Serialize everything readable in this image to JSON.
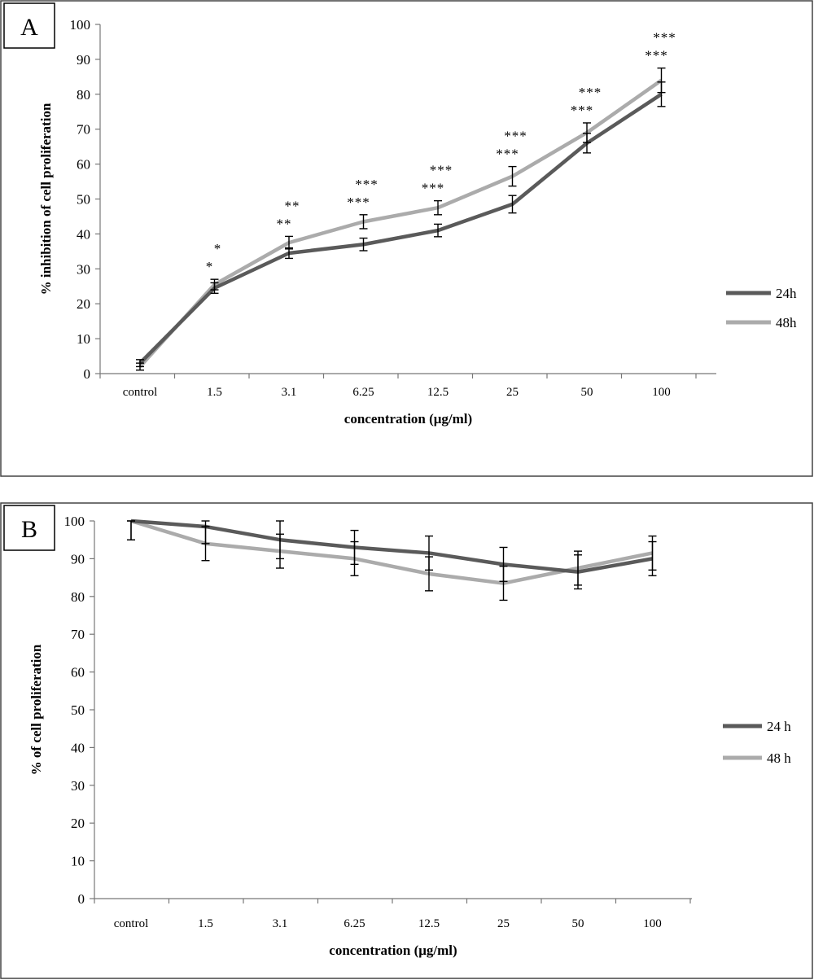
{
  "chart_data": [
    {
      "panel": "A",
      "type": "line",
      "xlabel": "concentration (μg/ml)",
      "ylabel": "% inhibition of cell proliferation",
      "categories": [
        "control",
        "1.5",
        "3.1",
        "6.25",
        "12.5",
        "25",
        "50",
        "100"
      ],
      "ylim": [
        0,
        100
      ],
      "yticks": [
        0,
        10,
        20,
        30,
        40,
        50,
        60,
        70,
        80,
        90,
        100
      ],
      "grid": false,
      "legend_position": "right",
      "series": [
        {
          "name": "24h",
          "color": "#5a5a5a",
          "values": [
            3,
            24.5,
            34.5,
            37,
            41,
            48.5,
            66,
            80
          ],
          "errors": [
            1,
            1.5,
            1.5,
            1.8,
            1.8,
            2.5,
            2.8,
            3.5
          ]
        },
        {
          "name": "48h",
          "color": "#ababab",
          "values": [
            2,
            25.5,
            37.5,
            43.5,
            47.5,
            56.5,
            69,
            84
          ],
          "errors": [
            1,
            1.5,
            1.8,
            2,
            2,
            2.8,
            2.8,
            3.5
          ]
        }
      ],
      "annotations": [
        {
          "category": "1.5",
          "upper": "*",
          "lower": "*"
        },
        {
          "category": "3.1",
          "upper": "**",
          "lower": "**"
        },
        {
          "category": "6.25",
          "upper": "***",
          "lower": "***"
        },
        {
          "category": "12.5",
          "upper": "***",
          "lower": "***"
        },
        {
          "category": "25",
          "upper": "***",
          "lower": "***"
        },
        {
          "category": "50",
          "upper": "***",
          "lower": "***"
        },
        {
          "category": "100",
          "upper": "***",
          "lower": "***"
        }
      ]
    },
    {
      "panel": "B",
      "type": "line",
      "xlabel": "concentration (μg/ml)",
      "ylabel": "% of cell proliferation",
      "categories": [
        "control",
        "1.5",
        "3.1",
        "6.25",
        "12.5",
        "25",
        "50",
        "100"
      ],
      "ylim": [
        0,
        100
      ],
      "yticks": [
        0,
        10,
        20,
        30,
        40,
        50,
        60,
        70,
        80,
        90,
        100
      ],
      "grid": false,
      "legend_position": "right",
      "series": [
        {
          "name": "24 h",
          "color": "#5a5a5a",
          "values": [
            100,
            98.5,
            95,
            93,
            91.5,
            88.5,
            86.5,
            90
          ],
          "errors": [
            5,
            4.5,
            5,
            4.5,
            4.5,
            4.5,
            4.5,
            4.5
          ]
        },
        {
          "name": "48 h",
          "color": "#ababab",
          "values": [
            100,
            94,
            92,
            90,
            86,
            83.5,
            87.5,
            91.5
          ],
          "errors": [
            5,
            4.5,
            4.5,
            4.5,
            4.5,
            4.5,
            4.5,
            4.5
          ]
        }
      ]
    }
  ]
}
